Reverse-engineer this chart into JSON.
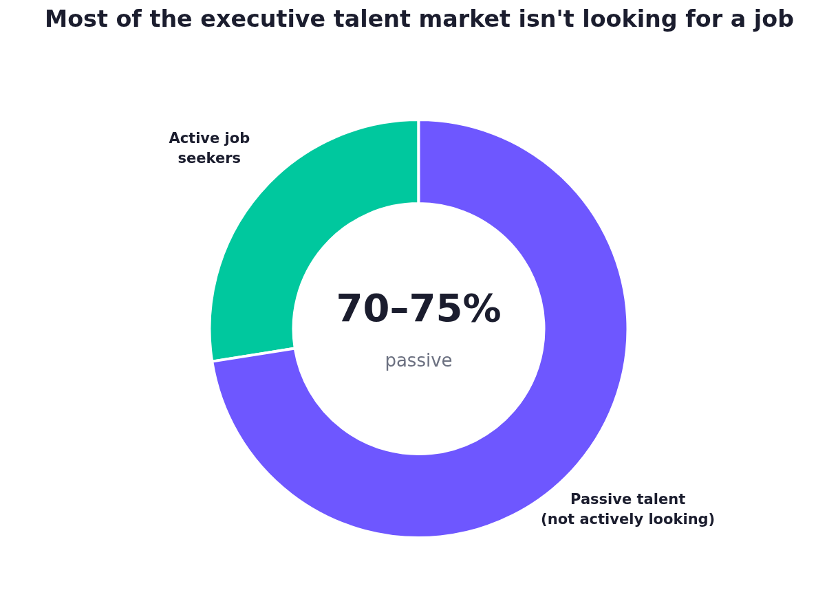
{
  "chart_data": {
    "type": "donut",
    "title": "Most of the executive talent market isn't looking for a job",
    "categories": [
      "Active job\nseekers",
      "Passive talent\n(not actively looking)"
    ],
    "values": [
      27.5,
      72.5
    ],
    "colors": [
      "#00c89e",
      "#6e57ff"
    ],
    "annotations": [
      "70–75%",
      "passive"
    ]
  }
}
